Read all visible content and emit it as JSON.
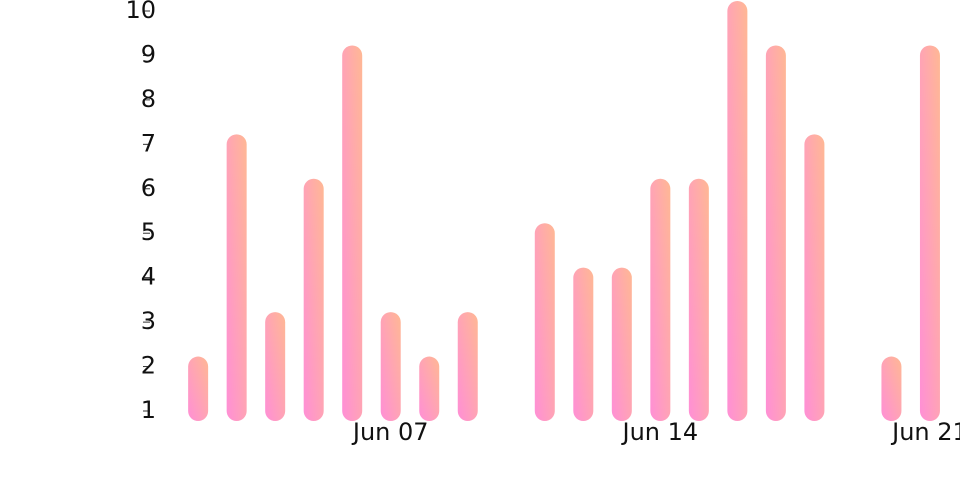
{
  "chart_data": {
    "type": "bar",
    "x": [
      2,
      3,
      4,
      5,
      6,
      7,
      8,
      9,
      11,
      12,
      13,
      14,
      15,
      16,
      17,
      18,
      20,
      21
    ],
    "values": [
      2,
      7,
      3,
      6,
      9,
      3,
      2,
      3,
      5,
      4,
      4,
      6,
      6,
      10,
      9,
      7,
      2,
      9
    ],
    "xlim": [
      1.01,
      21.78
    ],
    "xticks": [
      {
        "value": 7,
        "label": "Jun 07"
      },
      {
        "value": 14,
        "label": "Jun 14"
      },
      {
        "value": 21,
        "label": "Jun 21"
      }
    ],
    "ylim": [
      1,
      10
    ],
    "yticks": [
      1,
      2,
      3,
      4,
      5,
      6,
      7,
      8,
      9,
      10
    ],
    "gradient": [
      "#ffb894",
      "#ff8fd6"
    ],
    "grid": false
  }
}
